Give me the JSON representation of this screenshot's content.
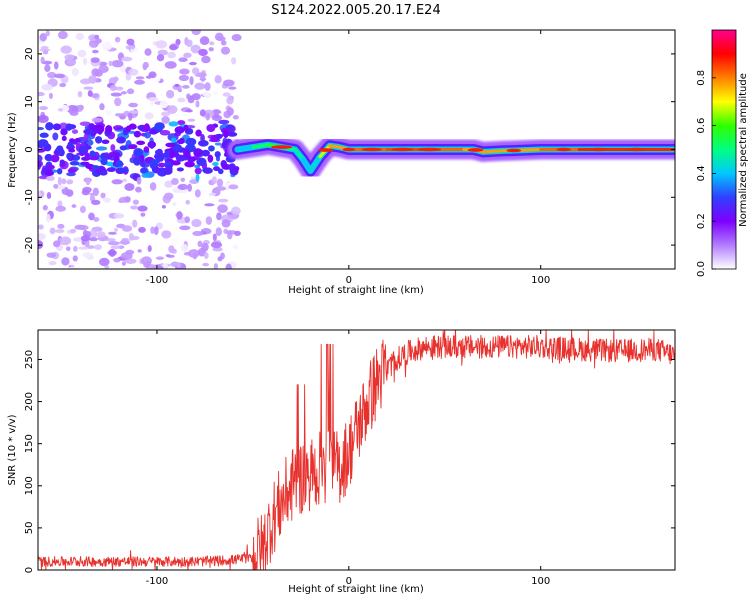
{
  "figure_title": "S124.2022.005.20.17.E24",
  "chart_data": [
    {
      "type": "heatmap",
      "xlabel": "Height of straight line (km)",
      "ylabel": "Frequency (Hz)",
      "xlim": [
        -162,
        170
      ],
      "ylim": [
        -25,
        25
      ],
      "xticks": [
        -100,
        0,
        100
      ],
      "xtick_labels": [
        "-100",
        "0",
        "100"
      ],
      "yticks": [
        -20,
        -10,
        0,
        10,
        20
      ],
      "ytick_labels": [
        "-20",
        "-10",
        "0",
        "10",
        "20"
      ],
      "grid": false,
      "colorbar": {
        "label": "Normalized spectral amplitude",
        "range": [
          0.0,
          1.0
        ],
        "ticks": [
          0.0,
          0.2,
          0.4,
          0.6,
          0.8
        ],
        "tick_labels": [
          "0.0",
          "0.2",
          "0.4",
          "0.6",
          "0.8"
        ],
        "colormap": [
          "#ffffff",
          "#b27cff",
          "#7d00ff",
          "#3040ff",
          "#00c8ff",
          "#00ff80",
          "#30ff00",
          "#ffff00",
          "#ff8000",
          "#ff0000",
          "#ff0090"
        ]
      },
      "ridge": {
        "description_x": [
          -58,
          -50,
          -42,
          -35,
          -28,
          -24,
          -20,
          -15,
          -10,
          -5,
          0,
          20,
          40,
          60,
          65,
          70,
          80,
          100,
          120,
          140,
          170
        ],
        "frequency_hz": [
          0.0,
          0.5,
          1.0,
          0.5,
          0.0,
          -2.0,
          -4.5,
          -1.5,
          0.8,
          0.5,
          0.0,
          0.0,
          0.0,
          0.0,
          0.0,
          -0.5,
          -0.3,
          0.0,
          0.0,
          0.0,
          0.0
        ],
        "amplitude": [
          0.35,
          0.45,
          0.6,
          0.55,
          0.45,
          0.5,
          0.3,
          0.55,
          0.8,
          0.75,
          0.8,
          0.85,
          0.85,
          0.8,
          0.75,
          0.8,
          0.75,
          0.8,
          0.85,
          0.9,
          0.85
        ]
      },
      "noise_region_x": [
        -162,
        -58
      ]
    },
    {
      "type": "line",
      "xlabel": "Height of straight line (km)",
      "ylabel": "SNR (10 * v/v)",
      "xlim": [
        -162,
        170
      ],
      "ylim": [
        0,
        285
      ],
      "xticks": [
        -100,
        0,
        100
      ],
      "xtick_labels": [
        "-100",
        "0",
        "100"
      ],
      "yticks": [
        0,
        50,
        100,
        150,
        200,
        250
      ],
      "ytick_labels": [
        "0",
        "50",
        "100",
        "150",
        "200",
        "250"
      ],
      "grid": false,
      "series": [
        {
          "color": "#e8302c",
          "x": [
            -162,
            -140,
            -120,
            -100,
            -80,
            -60,
            -50,
            -45,
            -40,
            -35,
            -30,
            -25,
            -20,
            -15,
            -12,
            -10,
            -5,
            0,
            5,
            10,
            15,
            20,
            25,
            30,
            40,
            60,
            80,
            100,
            120,
            140,
            160,
            170
          ],
          "y": [
            10,
            10,
            10,
            10,
            10,
            12,
            15,
            25,
            60,
            80,
            100,
            110,
            115,
            120,
            110,
            130,
            120,
            140,
            170,
            200,
            225,
            240,
            250,
            258,
            265,
            265,
            265,
            265,
            262,
            260,
            262,
            255
          ]
        }
      ]
    }
  ]
}
